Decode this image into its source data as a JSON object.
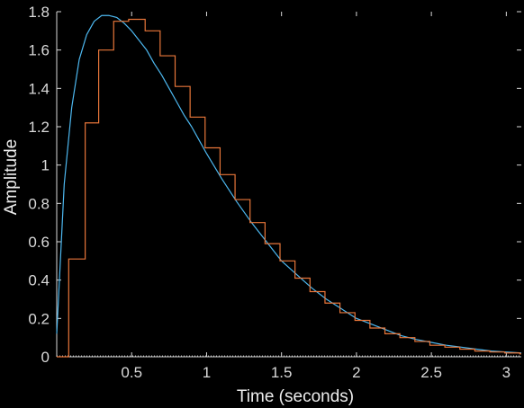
{
  "chart_data": {
    "type": "line",
    "title": "",
    "xlabel": "Time (seconds)",
    "ylabel": "Amplitude",
    "xlim": [
      0,
      3.1
    ],
    "ylim": [
      0,
      1.8
    ],
    "grid": false,
    "legend": "none",
    "background_color": "#000000",
    "axis_color": "#d9d9d9",
    "x_ticks": [
      0.5,
      1,
      1.5,
      2,
      2.5,
      3
    ],
    "x_tick_labels": [
      "0.5",
      "1",
      "1.5",
      "2",
      "2.5",
      "3"
    ],
    "y_ticks": [
      0,
      0.2,
      0.4,
      0.6,
      0.8,
      1,
      1.2,
      1.4,
      1.6,
      1.8
    ],
    "y_tick_labels": [
      "0",
      "0.2",
      "0.4",
      "0.6",
      "0.8",
      "1",
      "1.2",
      "1.4",
      "1.6",
      "1.8"
    ],
    "series": [
      {
        "kind": "continuous",
        "color": "#4db8f0",
        "x": [
          0,
          0.05,
          0.1,
          0.15,
          0.2,
          0.25,
          0.3,
          0.35,
          0.4,
          0.45,
          0.5,
          0.55,
          0.6,
          0.65,
          0.7,
          0.75,
          0.8,
          0.85,
          0.9,
          0.95,
          1.0,
          1.1,
          1.2,
          1.3,
          1.4,
          1.5,
          1.6,
          1.7,
          1.8,
          1.9,
          2.0,
          2.1,
          2.2,
          2.3,
          2.4,
          2.5,
          2.6,
          2.7,
          2.8,
          2.9,
          3.0,
          3.1
        ],
        "y": [
          0.12,
          0.9,
          1.3,
          1.55,
          1.68,
          1.75,
          1.78,
          1.78,
          1.77,
          1.74,
          1.7,
          1.65,
          1.6,
          1.53,
          1.47,
          1.4,
          1.33,
          1.26,
          1.2,
          1.13,
          1.06,
          0.93,
          0.81,
          0.7,
          0.6,
          0.5,
          0.43,
          0.36,
          0.3,
          0.25,
          0.2,
          0.17,
          0.14,
          0.11,
          0.09,
          0.075,
          0.06,
          0.05,
          0.04,
          0.03,
          0.025,
          0.02
        ]
      },
      {
        "kind": "stairs",
        "color": "#e8763a",
        "x": [
          0,
          0.08,
          0.19,
          0.28,
          0.38,
          0.48,
          0.59,
          0.69,
          0.79,
          0.89,
          0.99,
          1.09,
          1.19,
          1.29,
          1.39,
          1.49,
          1.59,
          1.69,
          1.79,
          1.89,
          1.99,
          2.09,
          2.19,
          2.29,
          2.39,
          2.49,
          2.59,
          2.69,
          2.79,
          2.89,
          2.99,
          3.09
        ],
        "y": [
          0,
          0.51,
          1.22,
          1.6,
          1.75,
          1.76,
          1.7,
          1.57,
          1.41,
          1.25,
          1.09,
          0.95,
          0.82,
          0.7,
          0.59,
          0.5,
          0.41,
          0.34,
          0.28,
          0.23,
          0.19,
          0.15,
          0.12,
          0.1,
          0.08,
          0.06,
          0.05,
          0.04,
          0.03,
          0.025,
          0.02,
          0.015
        ]
      }
    ]
  }
}
